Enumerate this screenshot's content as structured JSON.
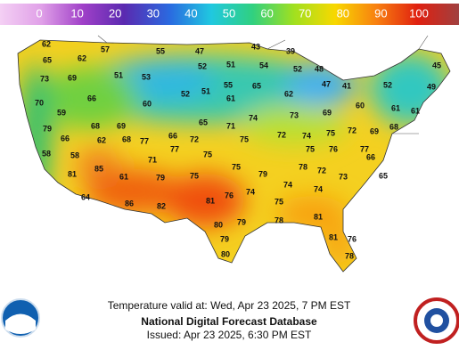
{
  "legend": {
    "labels": [
      0,
      10,
      20,
      30,
      40,
      50,
      60,
      70,
      80,
      90,
      100
    ]
  },
  "temperatures": [
    62,
    57,
    55,
    47,
    43,
    39,
    65,
    62,
    52,
    51,
    54,
    52,
    48,
    45,
    73,
    69,
    51,
    53,
    55,
    65,
    47,
    41,
    52,
    49,
    70,
    66,
    60,
    52,
    51,
    61,
    62,
    69,
    60,
    61,
    61,
    59,
    65,
    71,
    74,
    73,
    79,
    68,
    69,
    68,
    62,
    66,
    72,
    74,
    75,
    72,
    69,
    68,
    66,
    72,
    75,
    77,
    77,
    75,
    76,
    77,
    58,
    58,
    71,
    75,
    66,
    85,
    75,
    78,
    72,
    73,
    65,
    81,
    61,
    79,
    75,
    79,
    74,
    74,
    74,
    64,
    86,
    82,
    81,
    76,
    75,
    80,
    79,
    78,
    81,
    79,
    81,
    76,
    80,
    78
  ],
  "footer": {
    "valid": "Temperature valid at: Wed, Apr 23 2025, 7 PM EST",
    "title": "National Digital Forecast Database",
    "issued": "Issued: Apr 23 2025, 6:30 PM EST"
  }
}
